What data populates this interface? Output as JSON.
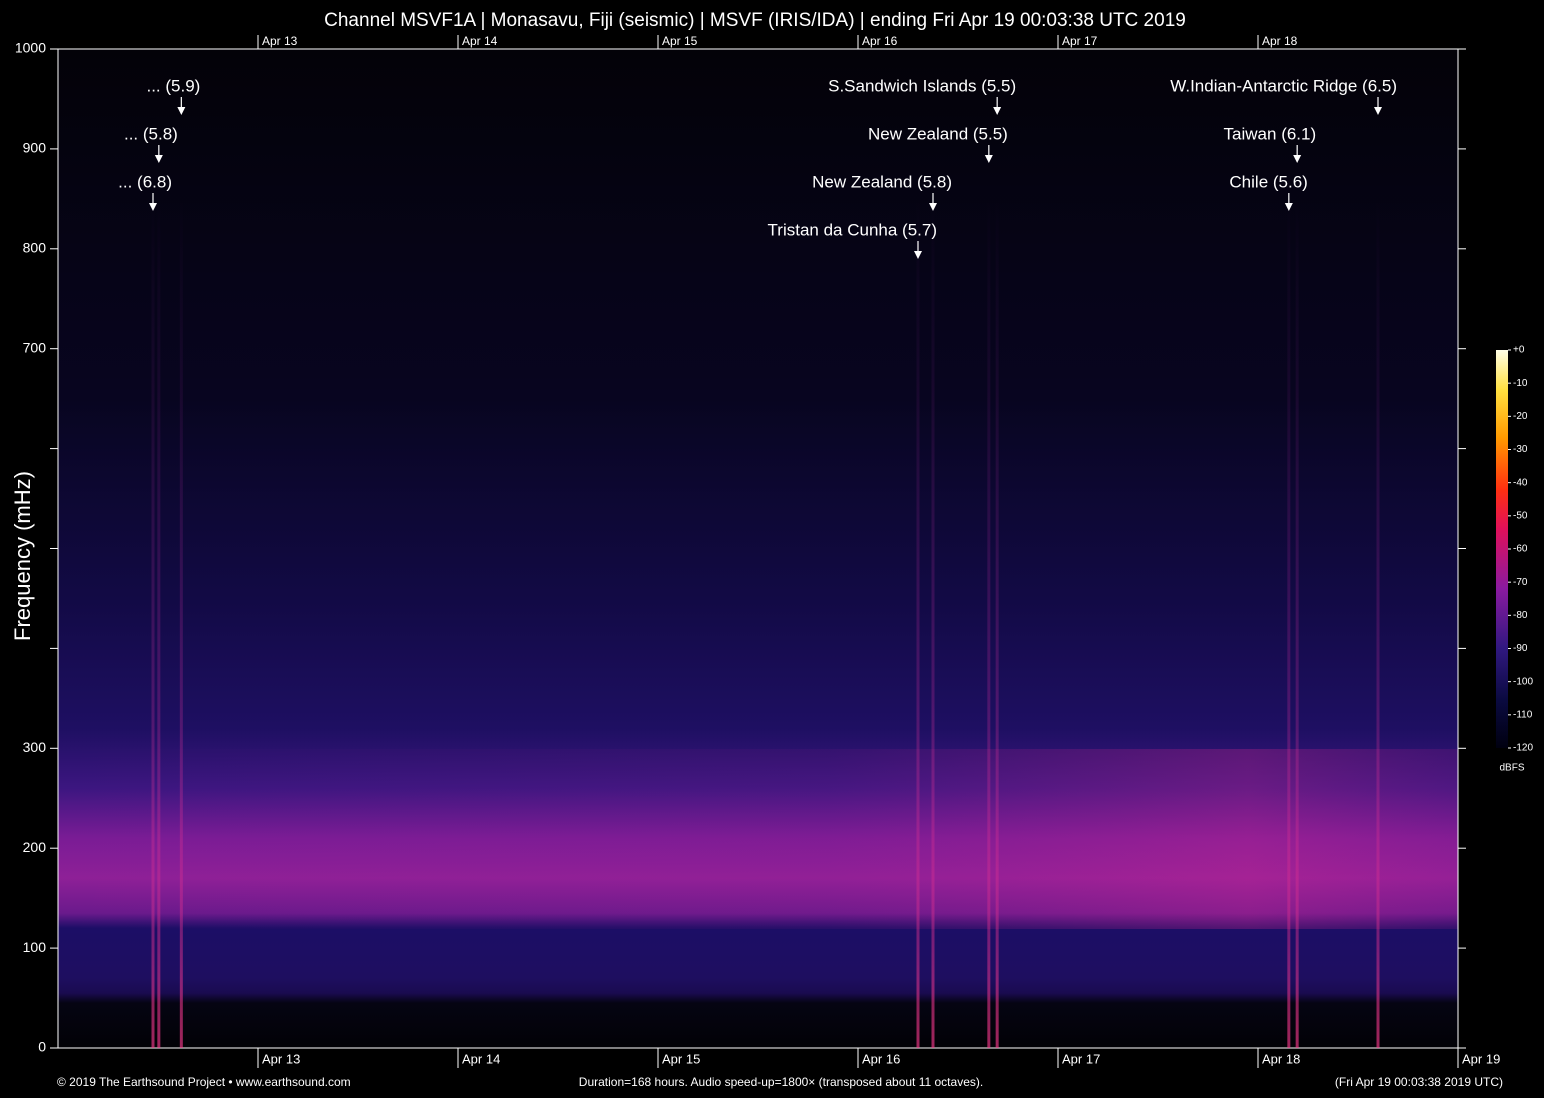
{
  "chart_data": {
    "type": "spectrogram",
    "title": "Channel MSVF1A | Monasavu, Fiji (seismic) | MSVF (IRIS/IDA) | ending Fri Apr 19 00:03:38 UTC 2019",
    "ylabel": "Frequency (mHz)",
    "ylim": [
      0,
      1000
    ],
    "yticks": [
      0,
      100,
      200,
      300,
      700,
      800,
      900,
      1000
    ],
    "yminor": [
      400,
      500,
      600
    ],
    "xlim": [
      0,
      168
    ],
    "xticks": [
      {
        "value": 24,
        "label": "Apr 13"
      },
      {
        "value": 48,
        "label": "Apr 14"
      },
      {
        "value": 72,
        "label": "Apr 15"
      },
      {
        "value": 96,
        "label": "Apr 16"
      },
      {
        "value": 120,
        "label": "Apr 17"
      },
      {
        "value": 144,
        "label": "Apr 18"
      },
      {
        "value": 168,
        "label": "Apr 19"
      }
    ],
    "events": [
      {
        "label": "... (5.9)",
        "x": 14.8
      },
      {
        "label": "... (5.8)",
        "x": 12.1
      },
      {
        "label": "... (6.8)",
        "x": 11.4
      },
      {
        "label": "S.Sandwich Islands (5.5)",
        "x": 112.7
      },
      {
        "label": "New Zealand (5.5)",
        "x": 111.7
      },
      {
        "label": "New Zealand (5.8)",
        "x": 105.0
      },
      {
        "label": "Tristan da Cunha (5.7)",
        "x": 103.2
      },
      {
        "label": "W.Indian-Antarctic Ridge (6.5)",
        "x": 158.4
      },
      {
        "label": "Taiwan (6.1)",
        "x": 148.7
      },
      {
        "label": "Chile (5.6)",
        "x": 147.7
      }
    ],
    "colorbar": {
      "label": "dBFS",
      "lim": [
        -120,
        0
      ],
      "ticks": [
        {
          "value": 0,
          "label": "+0"
        },
        -10,
        -20,
        -30,
        -40,
        -50,
        -60,
        -70,
        -80,
        -90,
        -100,
        -110,
        -120
      ]
    },
    "footer_left": "© 2019 The Earthsound Project • www.earthsound.com",
    "footer_center": "Duration=168 hours. Audio speed-up=1800× (transposed about 11 octaves).",
    "footer_right": "(Fri Apr 19 00:03:38 2019 UTC)"
  }
}
